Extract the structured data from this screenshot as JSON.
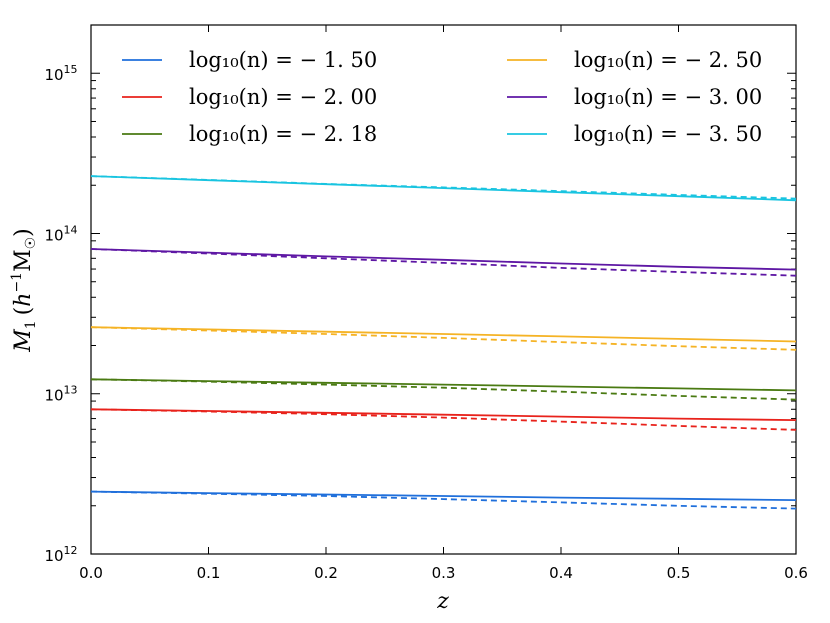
{
  "chart_data": {
    "type": "line",
    "title": "",
    "xlabel": "z",
    "ylabel": "M1 (h^-1 M☉)",
    "ylabel_parts": {
      "symbol": "M",
      "sub": "1",
      "open": "(",
      "h": "h",
      "exp": "−1",
      "msun": "M",
      "msun_sub": "☉",
      "close": ")"
    },
    "xscale": "linear",
    "yscale": "log",
    "xlim": [
      0.0,
      0.6
    ],
    "ylim": [
      1000000000000.0,
      2000000000000000.0
    ],
    "x_ticks": [
      "0.0",
      "0.1",
      "0.2",
      "0.3",
      "0.4",
      "0.5",
      "0.6"
    ],
    "x_tick_values": [
      0.0,
      0.1,
      0.2,
      0.3,
      0.4,
      0.5,
      0.6
    ],
    "y_major_ticks": [
      {
        "value": 1000000000000.0,
        "base": "10",
        "exp": "12"
      },
      {
        "value": 10000000000000.0,
        "base": "10",
        "exp": "13"
      },
      {
        "value": 100000000000000.0,
        "base": "10",
        "exp": "14"
      },
      {
        "value": 1000000000000000.0,
        "base": "10",
        "exp": "15"
      }
    ],
    "legend_position": "top",
    "line_styles": {
      "solid": "model",
      "dashed": "comparison"
    },
    "x": [
      0.0,
      0.1,
      0.2,
      0.3,
      0.4,
      0.5,
      0.6
    ],
    "series": [
      {
        "name": "log10(n) = −1.50",
        "legend_text": "log₁₀(n) = − 1. 50",
        "color": "#1f6fdb",
        "solid": [
          2450000000000.0,
          2400000000000.0,
          2350000000000.0,
          2300000000000.0,
          2250000000000.0,
          2210000000000.0,
          2170000000000.0
        ],
        "dashed": [
          2450000000000.0,
          2380000000000.0,
          2300000000000.0,
          2200000000000.0,
          2100000000000.0,
          2000000000000.0,
          1920000000000.0
        ]
      },
      {
        "name": "log10(n) = −2.00",
        "legend_text": "log₁₀(n) = − 2. 00",
        "color": "#e8221b",
        "solid": [
          8000000000000.0,
          7800000000000.0,
          7600000000000.0,
          7400000000000.0,
          7200000000000.0,
          7000000000000.0,
          6850000000000.0
        ],
        "dashed": [
          8000000000000.0,
          7750000000000.0,
          7450000000000.0,
          7100000000000.0,
          6700000000000.0,
          6300000000000.0,
          5950000000000.0
        ]
      },
      {
        "name": "log10(n) = −2.18",
        "legend_text": "log₁₀(n) = − 2. 18",
        "color": "#4a7a12",
        "solid": [
          12300000000000.0,
          12000000000000.0,
          11700000000000.0,
          11400000000000.0,
          11100000000000.0,
          10800000000000.0,
          10500000000000.0
        ],
        "dashed": [
          12300000000000.0,
          11900000000000.0,
          11400000000000.0,
          10900000000000.0,
          10300000000000.0,
          9700000000000.0,
          9200000000000.0
        ]
      },
      {
        "name": "log10(n) = −2.50",
        "legend_text": "log₁₀(n) = − 2. 50",
        "color": "#f5b325",
        "solid": [
          26000000000000.0,
          25200000000000.0,
          24400000000000.0,
          23600000000000.0,
          22800000000000.0,
          22000000000000.0,
          21200000000000.0
        ],
        "dashed": [
          26000000000000.0,
          24800000000000.0,
          23600000000000.0,
          22300000000000.0,
          21000000000000.0,
          19800000000000.0,
          18800000000000.0
        ]
      },
      {
        "name": "log10(n) = −3.00",
        "legend_text": "log₁₀(n) = − 3. 00",
        "color": "#5e17a4",
        "solid": [
          80000000000000.0,
          76000000000000.0,
          72000000000000.0,
          68500000000000.0,
          65000000000000.0,
          62000000000000.0,
          59500000000000.0
        ],
        "dashed": [
          80000000000000.0,
          75000000000000.0,
          70000000000000.0,
          65500000000000.0,
          61000000000000.0,
          57500000000000.0,
          54500000000000.0
        ]
      },
      {
        "name": "log10(n) = −3.50",
        "legend_text": "log₁₀(n) = − 3. 50",
        "color": "#19c4e0",
        "solid": [
          228000000000000.0,
          215000000000000.0,
          203000000000000.0,
          192000000000000.0,
          181000000000000.0,
          171000000000000.0,
          161000000000000.0
        ],
        "dashed": [
          228000000000000.0,
          216000000000000.0,
          204000000000000.0,
          194000000000000.0,
          184000000000000.0,
          174000000000000.0,
          165000000000000.0
        ]
      }
    ]
  }
}
